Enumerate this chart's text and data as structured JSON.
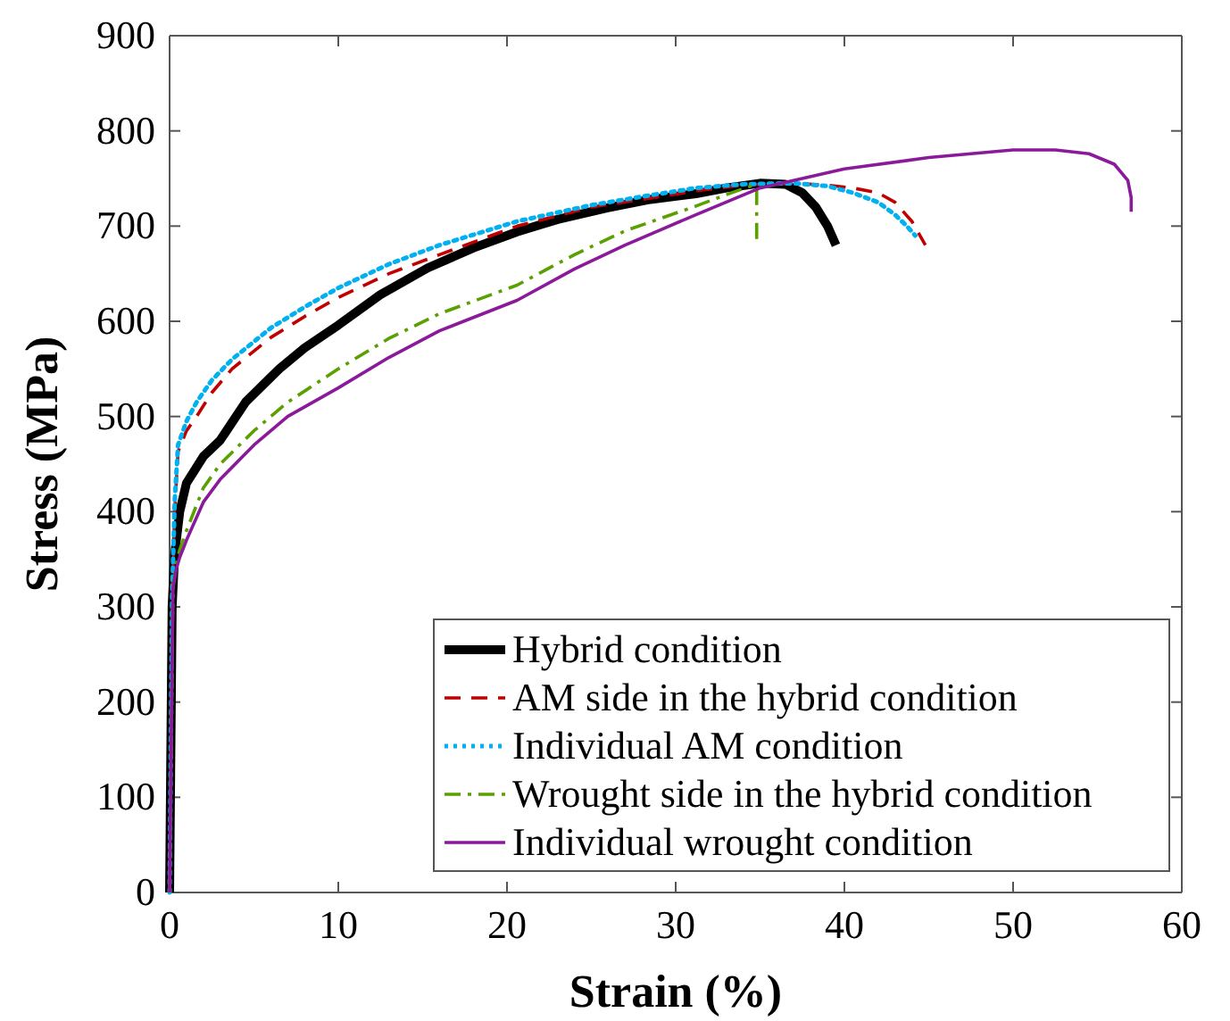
{
  "chart_data": {
    "type": "line",
    "xlabel": "Strain (%)",
    "ylabel": "Stress (MPa)",
    "xlim": [
      0,
      60
    ],
    "ylim": [
      0,
      900
    ],
    "xticks": [
      0,
      10,
      20,
      30,
      40,
      50,
      60
    ],
    "yticks": [
      0,
      100,
      200,
      300,
      400,
      500,
      600,
      700,
      800,
      900
    ],
    "grid": false,
    "legend": "bottom right",
    "marker": "none",
    "series": [
      {
        "name": "Hybrid condition",
        "color": "#000000",
        "line_style": "solid",
        "x": [
          0,
          0.15,
          0.3,
          0.6,
          1,
          2,
          3,
          4.5,
          6.5,
          8,
          10,
          12.5,
          15.3,
          18,
          20.6,
          23,
          25.9,
          28.5,
          31.2,
          33,
          35,
          36.5,
          37.5,
          38.3,
          39,
          39.5
        ],
        "values": [
          0,
          300,
          355,
          400,
          430,
          458,
          475,
          515,
          550,
          572,
          596,
          628,
          656,
          677,
          694,
          707,
          719,
          728,
          734,
          740,
          745,
          744,
          735,
          720,
          700,
          680
        ]
      },
      {
        "name": "AM side in the hybrid condition",
        "color": "#c00000",
        "line_style": "dashed",
        "x": [
          0,
          0.15,
          0.3,
          0.5,
          1,
          1.6,
          2.5,
          3.7,
          6,
          8,
          10,
          13,
          16,
          20.6,
          25,
          28,
          31.2,
          34,
          37,
          39,
          40.5,
          42,
          43,
          44,
          44.8
        ],
        "values": [
          0,
          300,
          400,
          463,
          485,
          500,
          525,
          550,
          583,
          605,
          625,
          650,
          670,
          700,
          720,
          728,
          737,
          743,
          745,
          743,
          740,
          735,
          725,
          705,
          680
        ]
      },
      {
        "name": "Individual AM condition",
        "color": "#00b0f0",
        "line_style": "dotted",
        "x": [
          0,
          0.15,
          0.3,
          0.5,
          1,
          1.6,
          2.5,
          3.7,
          6,
          8,
          10,
          13,
          16,
          20.6,
          25,
          28,
          31.2,
          34,
          37,
          39,
          40.5,
          42,
          43,
          43.7,
          44.2
        ],
        "values": [
          0,
          310,
          410,
          470,
          495,
          515,
          538,
          560,
          593,
          615,
          635,
          660,
          680,
          705,
          722,
          731,
          740,
          744,
          745,
          742,
          735,
          725,
          712,
          700,
          690
        ]
      },
      {
        "name": "Wrought side in the hybrid condition",
        "color": "#5aa000",
        "line_style": "dashdot",
        "x": [
          0,
          0.2,
          0.4,
          0.6,
          1,
          2,
          3,
          5,
          7,
          10,
          13,
          16,
          20.6,
          24,
          27,
          31.2,
          33,
          34.6,
          34.8,
          34.8
        ],
        "values": [
          0,
          320,
          345,
          360,
          380,
          425,
          450,
          485,
          515,
          550,
          582,
          608,
          638,
          670,
          695,
          721,
          733,
          743,
          740,
          680
        ]
      },
      {
        "name": "Individual wrought condition",
        "color": "#8b1a9b",
        "line_style": "solid",
        "x": [
          0,
          0.2,
          0.4,
          0.6,
          1,
          2,
          3,
          5,
          7,
          10,
          13,
          16,
          20.6,
          24,
          27,
          31.2,
          35,
          40,
          45,
          50,
          52.5,
          54.5,
          56,
          56.8,
          57,
          57
        ],
        "values": [
          0,
          320,
          340,
          352,
          370,
          410,
          434,
          470,
          500,
          530,
          562,
          590,
          622,
          655,
          680,
          712,
          740,
          760,
          772,
          780,
          780,
          776,
          765,
          748,
          730,
          715
        ]
      }
    ]
  }
}
